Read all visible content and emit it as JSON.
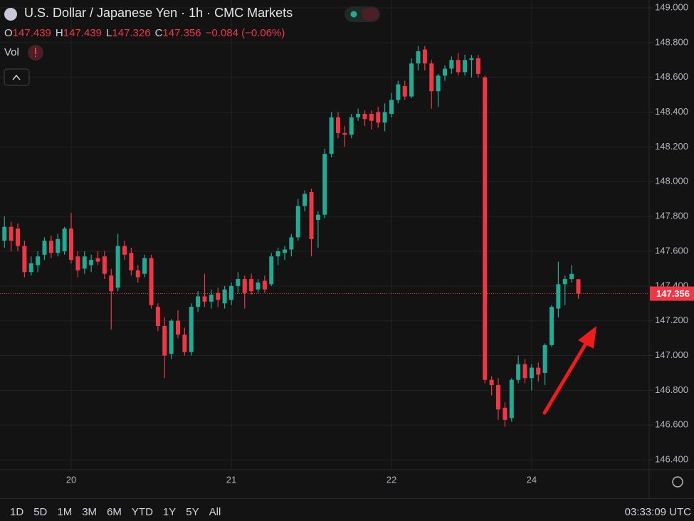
{
  "chart_data": {
    "type": "candlestick",
    "title": "U.S. Dollar / Japanese Yen · 1h · CMC Markets",
    "ohlc_labels": [
      "O",
      "H",
      "L",
      "C"
    ],
    "change_label": "−0.084 (−0.06%)",
    "volume_label": "Vol",
    "up_color": "#22ab94",
    "down_color": "#f23645",
    "grid": true,
    "last_price": 147.356,
    "ylim": [
      146.343,
      149.045
    ],
    "yticks": [
      {
        "value": 146.4,
        "label": "146.400"
      },
      {
        "value": 146.6,
        "label": "146.600"
      },
      {
        "value": 146.8,
        "label": "146.800"
      },
      {
        "value": 147.0,
        "label": "147.000"
      },
      {
        "value": 147.2,
        "label": "147.200"
      },
      {
        "value": 147.4,
        "label": "147.400"
      },
      {
        "value": 147.6,
        "label": "147.600"
      },
      {
        "value": 147.8,
        "label": "147.800"
      },
      {
        "value": 148.0,
        "label": "148.000"
      },
      {
        "value": 148.2,
        "label": "148.200"
      },
      {
        "value": 148.4,
        "label": "148.400"
      },
      {
        "value": 148.6,
        "label": "148.600"
      },
      {
        "value": 148.8,
        "label": "148.800"
      },
      {
        "value": 149.0,
        "label": "149.000"
      }
    ],
    "categories": [
      null,
      null,
      null,
      null,
      null,
      null,
      null,
      null,
      null,
      null,
      "20",
      null,
      null,
      null,
      null,
      null,
      null,
      null,
      null,
      null,
      null,
      null,
      null,
      null,
      null,
      null,
      null,
      null,
      null,
      null,
      null,
      null,
      null,
      null,
      "21",
      null,
      null,
      null,
      null,
      null,
      null,
      null,
      null,
      null,
      null,
      null,
      null,
      null,
      null,
      null,
      null,
      null,
      null,
      null,
      null,
      null,
      null,
      null,
      "22",
      null,
      null,
      null,
      null,
      null,
      null,
      null,
      null,
      null,
      null,
      null,
      null,
      null,
      null,
      null,
      null,
      null,
      null,
      null,
      null,
      "24",
      null,
      null,
      null,
      null,
      null,
      null,
      null
    ],
    "open": [
      147.66,
      147.74,
      147.73,
      147.63,
      147.48,
      147.52,
      147.58,
      147.66,
      147.59,
      147.6,
      147.73,
      147.57,
      147.5,
      147.52,
      147.56,
      147.57,
      147.46,
      147.39,
      147.63,
      147.59,
      147.49,
      147.47,
      147.56,
      147.28,
      147.17,
      147.01,
      147.2,
      147.12,
      147.02,
      147.28,
      147.34,
      147.31,
      147.36,
      147.3,
      147.32,
      147.4,
      147.44,
      147.44,
      147.38,
      147.43,
      147.41,
      147.57,
      147.59,
      147.61,
      147.68,
      147.86,
      147.94,
      147.78,
      147.81,
      148.16,
      148.37,
      148.28,
      148.27,
      148.37,
      148.39,
      148.39,
      148.4,
      148.34,
      148.39,
      148.47,
      148.55,
      148.49,
      148.68,
      148.76,
      148.68,
      148.52,
      148.61,
      148.65,
      148.7,
      148.63,
      148.7,
      148.71,
      148.6,
      146.86,
      146.83,
      146.7,
      146.64,
      146.86,
      146.95,
      146.87,
      146.93,
      146.9,
      147.06,
      147.27,
      147.41,
      147.44,
      147.439
    ],
    "high": [
      147.8,
      147.77,
      147.76,
      147.66,
      147.57,
      147.6,
      147.68,
      147.69,
      147.7,
      147.74,
      147.82,
      147.6,
      147.6,
      147.58,
      147.6,
      147.6,
      147.5,
      147.7,
      147.66,
      147.62,
      147.52,
      147.58,
      147.58,
      147.3,
      147.22,
      147.21,
      147.26,
      147.16,
      147.3,
      147.37,
      147.47,
      147.38,
      147.39,
      147.4,
      147.42,
      147.48,
      147.46,
      147.47,
      147.44,
      147.46,
      147.59,
      147.62,
      147.63,
      147.7,
      147.9,
      147.95,
      147.96,
      147.83,
      148.19,
      148.4,
      148.4,
      148.32,
      148.39,
      148.42,
      148.41,
      148.41,
      148.43,
      148.45,
      148.51,
      148.58,
      148.58,
      148.71,
      148.78,
      148.78,
      148.7,
      148.62,
      148.67,
      148.72,
      148.74,
      148.73,
      148.73,
      148.73,
      148.61,
      146.88,
      146.87,
      146.73,
      146.87,
      147.0,
      146.98,
      146.95,
      146.96,
      147.07,
      147.29,
      147.54,
      147.46,
      147.52,
      147.439
    ],
    "low": [
      147.62,
      147.6,
      147.6,
      147.45,
      147.46,
      147.48,
      147.55,
      147.56,
      147.57,
      147.58,
      147.53,
      147.45,
      147.47,
      147.48,
      147.52,
      147.44,
      147.15,
      147.37,
      147.55,
      147.46,
      147.42,
      147.45,
      147.27,
      147.14,
      146.87,
      146.98,
      147.1,
      147.0,
      147.0,
      147.25,
      147.28,
      147.27,
      147.28,
      147.27,
      147.29,
      147.36,
      147.27,
      147.35,
      147.36,
      147.36,
      147.4,
      147.52,
      147.55,
      147.57,
      147.66,
      147.83,
      147.57,
      147.62,
      147.79,
      148.14,
      148.25,
      148.2,
      148.25,
      148.35,
      148.32,
      148.3,
      148.31,
      148.29,
      148.37,
      148.45,
      148.47,
      148.48,
      148.64,
      148.64,
      148.42,
      148.43,
      148.58,
      148.62,
      148.61,
      148.61,
      148.6,
      148.6,
      146.84,
      146.77,
      146.63,
      146.59,
      146.62,
      146.84,
      146.84,
      146.8,
      146.85,
      146.83,
      147.05,
      147.22,
      147.29,
      147.42,
      147.326
    ],
    "close": [
      147.74,
      147.66,
      147.63,
      147.48,
      147.53,
      147.57,
      147.66,
      147.59,
      147.67,
      147.73,
      147.55,
      147.49,
      147.57,
      147.55,
      147.54,
      147.47,
      147.37,
      147.63,
      147.58,
      147.49,
      147.45,
      147.56,
      147.29,
      147.17,
      147.0,
      147.2,
      147.12,
      147.02,
      147.28,
      147.34,
      147.31,
      147.35,
      147.32,
      147.38,
      147.4,
      147.44,
      147.36,
      147.37,
      147.42,
      147.38,
      147.57,
      147.6,
      147.61,
      147.68,
      147.86,
      147.93,
      147.67,
      147.81,
      148.16,
      148.37,
      148.28,
      148.27,
      148.37,
      148.39,
      148.36,
      148.35,
      148.34,
      148.4,
      148.47,
      148.56,
      148.49,
      148.68,
      148.75,
      148.68,
      148.52,
      148.61,
      148.65,
      148.7,
      148.63,
      148.7,
      148.71,
      148.62,
      146.86,
      146.83,
      146.69,
      146.63,
      146.86,
      146.95,
      146.87,
      146.93,
      146.89,
      147.06,
      147.28,
      147.41,
      147.44,
      147.47,
      147.356
    ]
  },
  "toolbar": {
    "ranges": [
      "1D",
      "5D",
      "1M",
      "3M",
      "6M",
      "YTD",
      "1Y",
      "5Y",
      "All"
    ],
    "clock": "03:33:09 UTC"
  }
}
